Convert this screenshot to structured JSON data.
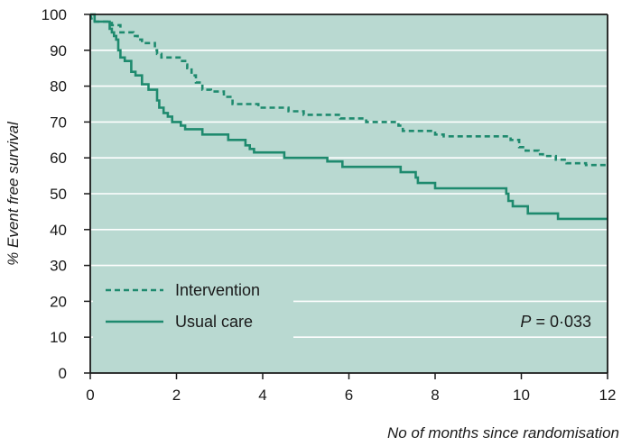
{
  "chart_data": {
    "type": "line",
    "subtype": "kaplan-meier step curve",
    "title": "",
    "xlabel": "No of months since randomisation",
    "ylabel": "% Event free survival",
    "xlim": [
      0,
      12
    ],
    "ylim": [
      0,
      100
    ],
    "x_ticks": [
      "0",
      "2",
      "4",
      "6",
      "8",
      "10",
      "12"
    ],
    "y_ticks": [
      "0",
      "10",
      "20",
      "30",
      "40",
      "50",
      "60",
      "70",
      "80",
      "90",
      "100"
    ],
    "grid": "horizontal",
    "legend_position": "lower-left",
    "annotation": {
      "prefix": "P",
      "text": " = 0·033"
    },
    "colors": {
      "plot_background": "#b9d9d1",
      "line": "#1e8a6e",
      "grid": "#ffffff",
      "axis": "#1a1a1a"
    },
    "series": [
      {
        "name": "Intervention",
        "style": "dashed",
        "points": [
          [
            0,
            100
          ],
          [
            0.05,
            98
          ],
          [
            0.5,
            98
          ],
          [
            0.5,
            97
          ],
          [
            0.7,
            97
          ],
          [
            0.7,
            95
          ],
          [
            1.0,
            95
          ],
          [
            1.0,
            94
          ],
          [
            1.1,
            94
          ],
          [
            1.1,
            93
          ],
          [
            1.2,
            93
          ],
          [
            1.2,
            92
          ],
          [
            1.5,
            92
          ],
          [
            1.5,
            90
          ],
          [
            1.55,
            90
          ],
          [
            1.55,
            89
          ],
          [
            1.65,
            89
          ],
          [
            1.65,
            88
          ],
          [
            2.1,
            88
          ],
          [
            2.1,
            87
          ],
          [
            2.2,
            87
          ],
          [
            2.2,
            86
          ],
          [
            2.25,
            86
          ],
          [
            2.25,
            85
          ],
          [
            2.35,
            85
          ],
          [
            2.35,
            83
          ],
          [
            2.45,
            83
          ],
          [
            2.45,
            81
          ],
          [
            2.6,
            81
          ],
          [
            2.6,
            79
          ],
          [
            2.8,
            79
          ],
          [
            2.8,
            78.5
          ],
          [
            3.1,
            78.5
          ],
          [
            3.1,
            77
          ],
          [
            3.3,
            77
          ],
          [
            3.3,
            75
          ],
          [
            3.9,
            75
          ],
          [
            3.9,
            74
          ],
          [
            4.6,
            74
          ],
          [
            4.6,
            73
          ],
          [
            4.95,
            73
          ],
          [
            4.95,
            72
          ],
          [
            5.8,
            72
          ],
          [
            5.8,
            71
          ],
          [
            6.4,
            71
          ],
          [
            6.4,
            70
          ],
          [
            7.15,
            70
          ],
          [
            7.15,
            69
          ],
          [
            7.25,
            69
          ],
          [
            7.25,
            67.5
          ],
          [
            8.0,
            67.5
          ],
          [
            8.0,
            66.5
          ],
          [
            8.2,
            66.5
          ],
          [
            8.2,
            66
          ],
          [
            9.75,
            66
          ],
          [
            9.75,
            65
          ],
          [
            9.95,
            65
          ],
          [
            9.95,
            63
          ],
          [
            10.1,
            63
          ],
          [
            10.1,
            62
          ],
          [
            10.4,
            62
          ],
          [
            10.4,
            61
          ],
          [
            10.5,
            61
          ],
          [
            10.5,
            60.5
          ],
          [
            10.8,
            60.5
          ],
          [
            10.8,
            59.5
          ],
          [
            11.05,
            59.5
          ],
          [
            11.05,
            58.5
          ],
          [
            11.5,
            58.5
          ],
          [
            11.5,
            58
          ],
          [
            12,
            58
          ]
        ]
      },
      {
        "name": "Usual care",
        "style": "solid",
        "points": [
          [
            0,
            100
          ],
          [
            0.1,
            100
          ],
          [
            0.1,
            98
          ],
          [
            0.45,
            98
          ],
          [
            0.45,
            96
          ],
          [
            0.5,
            96
          ],
          [
            0.5,
            95
          ],
          [
            0.55,
            95
          ],
          [
            0.55,
            94
          ],
          [
            0.6,
            94
          ],
          [
            0.6,
            93
          ],
          [
            0.65,
            93
          ],
          [
            0.65,
            90
          ],
          [
            0.7,
            90
          ],
          [
            0.7,
            88
          ],
          [
            0.8,
            88
          ],
          [
            0.8,
            87
          ],
          [
            0.95,
            87
          ],
          [
            0.95,
            84
          ],
          [
            1.05,
            84
          ],
          [
            1.05,
            83
          ],
          [
            1.2,
            83
          ],
          [
            1.2,
            80.5
          ],
          [
            1.35,
            80.5
          ],
          [
            1.35,
            79
          ],
          [
            1.55,
            79
          ],
          [
            1.55,
            76
          ],
          [
            1.6,
            76
          ],
          [
            1.6,
            74
          ],
          [
            1.7,
            74
          ],
          [
            1.7,
            72.5
          ],
          [
            1.8,
            72.5
          ],
          [
            1.8,
            71.5
          ],
          [
            1.9,
            71.5
          ],
          [
            1.9,
            70
          ],
          [
            2.1,
            70
          ],
          [
            2.1,
            69
          ],
          [
            2.2,
            69
          ],
          [
            2.2,
            68
          ],
          [
            2.6,
            68
          ],
          [
            2.6,
            66.5
          ],
          [
            3.2,
            66.5
          ],
          [
            3.2,
            65
          ],
          [
            3.6,
            65
          ],
          [
            3.6,
            63.5
          ],
          [
            3.7,
            63.5
          ],
          [
            3.7,
            62.5
          ],
          [
            3.8,
            62.5
          ],
          [
            3.8,
            61.5
          ],
          [
            4.5,
            61.5
          ],
          [
            4.5,
            60
          ],
          [
            5.5,
            60
          ],
          [
            5.5,
            59
          ],
          [
            5.85,
            59
          ],
          [
            5.85,
            57.5
          ],
          [
            7.2,
            57.5
          ],
          [
            7.2,
            56
          ],
          [
            7.55,
            56
          ],
          [
            7.55,
            54.5
          ],
          [
            7.6,
            54.5
          ],
          [
            7.6,
            53
          ],
          [
            8.0,
            53
          ],
          [
            8.0,
            51.5
          ],
          [
            9.65,
            51.5
          ],
          [
            9.65,
            50
          ],
          [
            9.7,
            50
          ],
          [
            9.7,
            48
          ],
          [
            9.8,
            48
          ],
          [
            9.8,
            46.5
          ],
          [
            10.15,
            46.5
          ],
          [
            10.15,
            44.5
          ],
          [
            10.85,
            44.5
          ],
          [
            10.85,
            43
          ],
          [
            12,
            43
          ]
        ]
      }
    ]
  }
}
